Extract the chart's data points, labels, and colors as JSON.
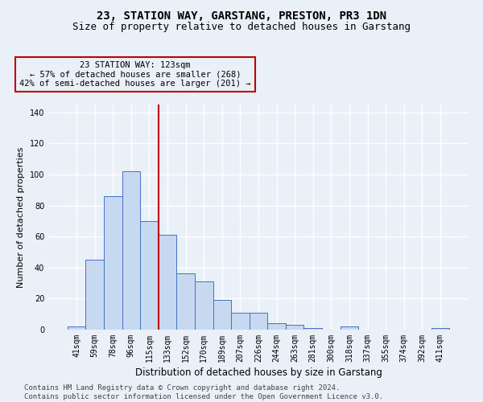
{
  "title": "23, STATION WAY, GARSTANG, PRESTON, PR3 1DN",
  "subtitle": "Size of property relative to detached houses in Garstang",
  "xlabel": "Distribution of detached houses by size in Garstang",
  "ylabel": "Number of detached properties",
  "bar_labels": [
    "41sqm",
    "59sqm",
    "78sqm",
    "96sqm",
    "115sqm",
    "133sqm",
    "152sqm",
    "170sqm",
    "189sqm",
    "207sqm",
    "226sqm",
    "244sqm",
    "263sqm",
    "281sqm",
    "300sqm",
    "318sqm",
    "337sqm",
    "355sqm",
    "374sqm",
    "392sqm",
    "411sqm"
  ],
  "bar_values": [
    2,
    45,
    86,
    102,
    70,
    61,
    36,
    31,
    19,
    11,
    11,
    4,
    3,
    1,
    0,
    2,
    0,
    0,
    0,
    0,
    1
  ],
  "bar_color": "#c6d9f1",
  "bar_edge_color": "#4472c4",
  "vline_x": 4.5,
  "vline_color": "#c00000",
  "annotation_text": "23 STATION WAY: 123sqm\n← 57% of detached houses are smaller (268)\n42% of semi-detached houses are larger (201) →",
  "annotation_box_color": "#c00000",
  "ylim": [
    0,
    145
  ],
  "yticks": [
    0,
    20,
    40,
    60,
    80,
    100,
    120,
    140
  ],
  "footer_text": "Contains HM Land Registry data © Crown copyright and database right 2024.\nContains public sector information licensed under the Open Government Licence v3.0.",
  "bg_color": "#eaf0f8",
  "grid_color": "#ffffff",
  "title_fontsize": 10,
  "subtitle_fontsize": 9,
  "label_fontsize": 8,
  "tick_fontsize": 7,
  "footer_fontsize": 6.5,
  "annot_fontsize": 7.5
}
